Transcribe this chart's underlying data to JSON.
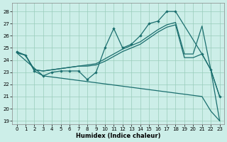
{
  "xlabel": "Humidex (Indice chaleur)",
  "bg_color": "#cceee8",
  "grid_color": "#99ccbb",
  "line_color": "#1a6e6e",
  "xlim": [
    -0.5,
    23.5
  ],
  "ylim": [
    18.7,
    28.7
  ],
  "yticks": [
    19,
    20,
    21,
    22,
    23,
    24,
    25,
    26,
    27,
    28
  ],
  "xticks": [
    0,
    1,
    2,
    3,
    4,
    5,
    6,
    7,
    8,
    9,
    10,
    11,
    12,
    13,
    14,
    15,
    16,
    17,
    18,
    19,
    20,
    21,
    22,
    23
  ],
  "series": [
    {
      "x": [
        0,
        1,
        2,
        3,
        4,
        5,
        6,
        7,
        8,
        9,
        10,
        11,
        12,
        13,
        14,
        15,
        16,
        17,
        18,
        21,
        22,
        23
      ],
      "y": [
        24.7,
        24.4,
        23.1,
        22.7,
        23.0,
        23.1,
        23.1,
        23.1,
        22.4,
        23.0,
        25.0,
        26.6,
        25.0,
        25.3,
        26.0,
        27.0,
        27.2,
        28.0,
        28.0,
        24.5,
        23.2,
        21.0
      ],
      "marker": true
    },
    {
      "x": [
        0,
        1,
        2,
        3,
        4,
        5,
        6,
        7,
        8,
        9,
        10,
        11,
        12,
        13,
        14,
        15,
        16,
        17,
        18,
        19,
        20,
        21,
        22,
        23
      ],
      "y": [
        24.6,
        24.4,
        23.2,
        23.1,
        23.2,
        23.3,
        23.4,
        23.5,
        23.6,
        23.7,
        24.1,
        24.5,
        24.9,
        25.2,
        25.5,
        26.0,
        26.5,
        26.9,
        27.1,
        24.5,
        24.5,
        26.8,
        23.2,
        21.0
      ],
      "marker": false
    },
    {
      "x": [
        0,
        1,
        2,
        3,
        4,
        5,
        6,
        7,
        8,
        9,
        10,
        11,
        12,
        13,
        14,
        15,
        16,
        17,
        18,
        19,
        20,
        21,
        22,
        23
      ],
      "y": [
        24.6,
        24.4,
        23.2,
        23.1,
        23.2,
        23.3,
        23.4,
        23.5,
        23.5,
        23.6,
        23.9,
        24.3,
        24.7,
        25.0,
        25.3,
        25.8,
        26.3,
        26.7,
        26.9,
        24.2,
        24.2,
        24.5,
        23.2,
        19.0
      ],
      "marker": false
    },
    {
      "x": [
        0,
        3,
        21,
        22,
        23
      ],
      "y": [
        24.6,
        22.7,
        21.0,
        19.8,
        19.0
      ],
      "marker": false
    }
  ]
}
